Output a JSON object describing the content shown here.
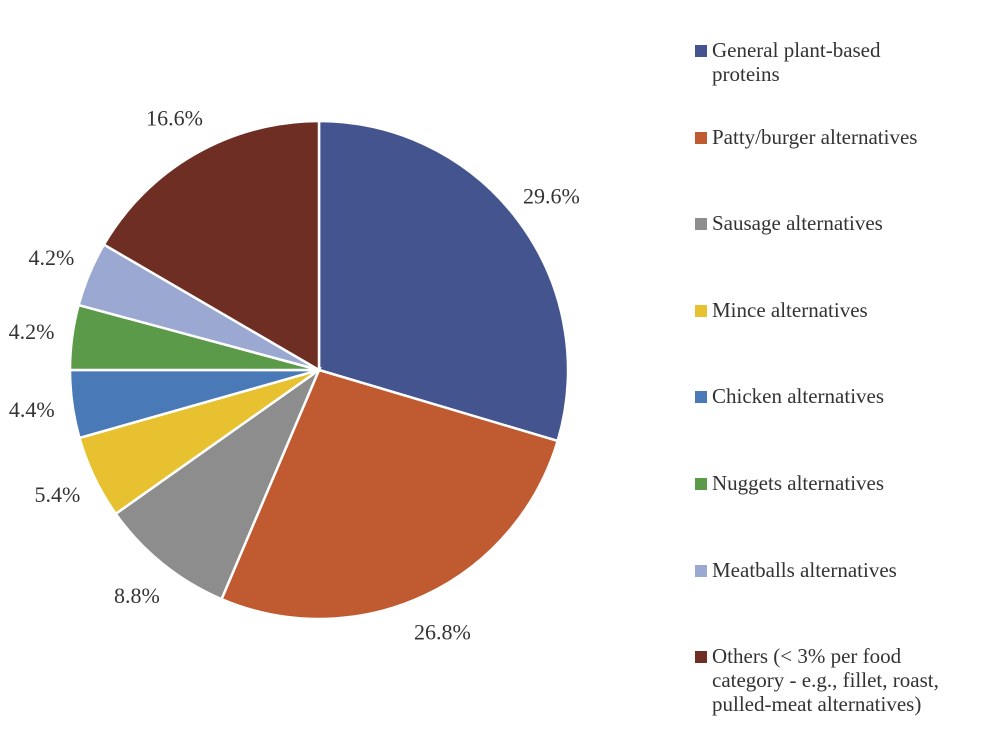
{
  "chart_data": {
    "type": "pie",
    "start_angle": "12 o'clock",
    "direction": "clockwise",
    "legend_position": "right",
    "slices": [
      {
        "label": "General plant-based proteins",
        "value": 29.6,
        "value_label": "29.6%",
        "color": "#44548f"
      },
      {
        "label": "Patty/burger alternatives",
        "value": 26.8,
        "value_label": "26.8%",
        "color": "#c05a30"
      },
      {
        "label": "Sausage alternatives",
        "value": 8.8,
        "value_label": "8.8%",
        "color": "#8d8d8d"
      },
      {
        "label": "Mince alternatives",
        "value": 5.4,
        "value_label": "5.4%",
        "color": "#e7c12f"
      },
      {
        "label": "Chicken alternatives",
        "value": 4.4,
        "value_label": "4.4%",
        "color": "#4a79b7"
      },
      {
        "label": "Nuggets alternatives",
        "value": 4.2,
        "value_label": "4.2%",
        "color": "#5b9a48"
      },
      {
        "label": "Meatballs alternatives",
        "value": 4.2,
        "value_label": "4.2%",
        "color": "#9aa8d2"
      },
      {
        "label": "Others (< 3% per food category - e.g., fillet, roast, pulled-meat alternatives)",
        "value": 16.6,
        "value_label": "16.6%",
        "color": "#6e2e23"
      }
    ]
  }
}
